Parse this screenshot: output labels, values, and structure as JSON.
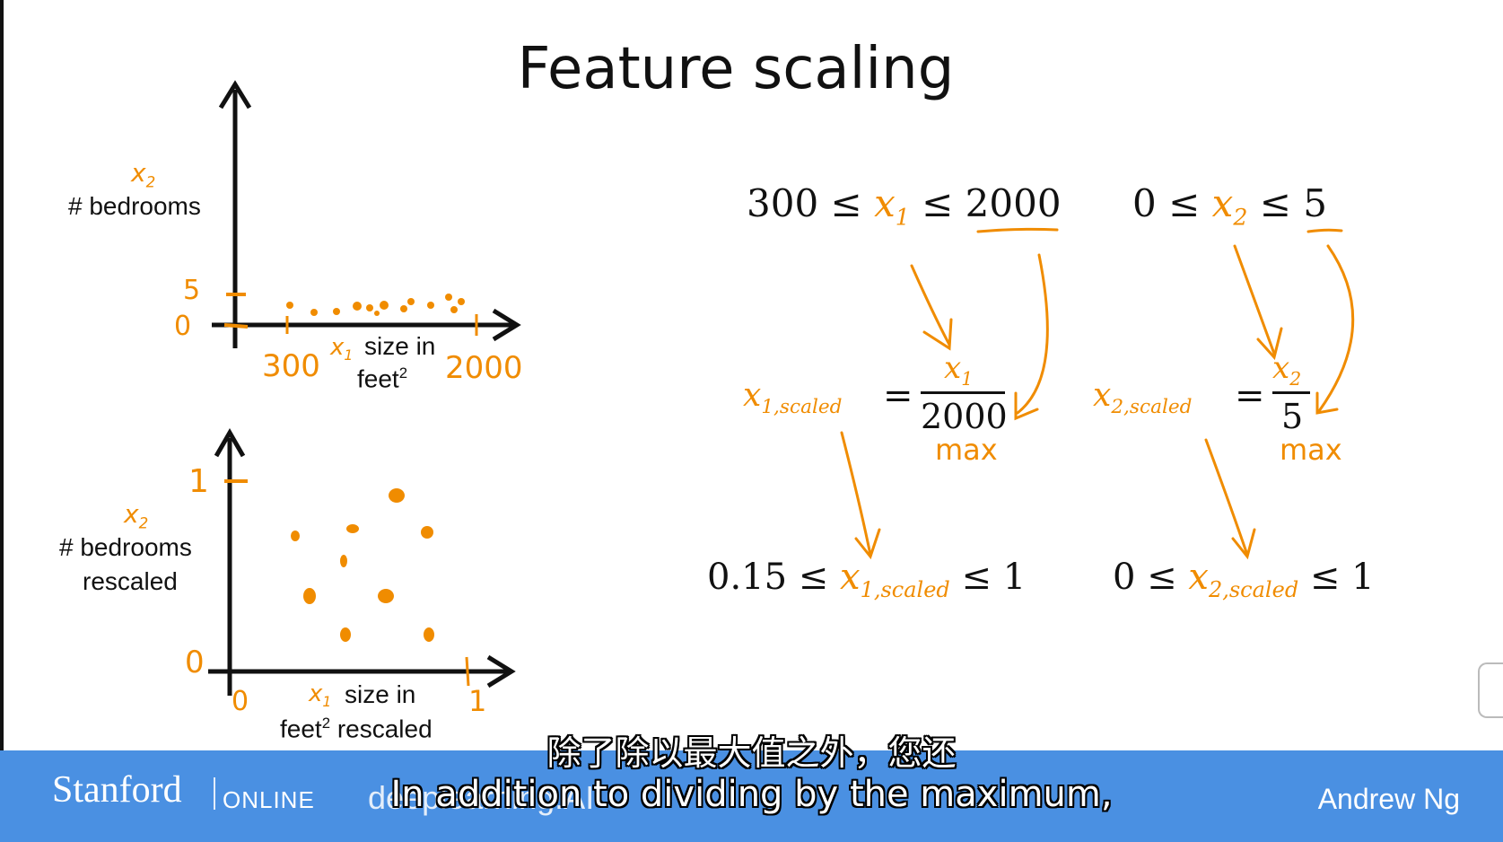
{
  "slide": {
    "title": "Feature scaling",
    "top_plot": {
      "y_var": "x",
      "y_var_sub": "2",
      "y_label": "# bedrooms",
      "x_var": "x",
      "x_var_sub": "1",
      "x_label_line1": "size in",
      "x_label_line2_base": "feet",
      "x_label_line2_sup": "2",
      "y_tick_top": "5",
      "y_tick_bottom": "0",
      "x_tick_left": "300",
      "x_tick_right": "2000"
    },
    "bottom_plot": {
      "y_var": "x",
      "y_var_sub": "2",
      "y_label_line1": "# bedrooms",
      "y_label_line2": "rescaled",
      "x_var": "x",
      "x_var_sub": "1",
      "x_label_line1": "size in",
      "x_label_line2_base": "feet",
      "x_label_line2_sup": "2",
      "x_label_line2_rest": " rescaled",
      "y_tick_top": "1",
      "y_tick_bottom": "0",
      "x_tick_left": "0",
      "x_tick_right": "1"
    },
    "equations": {
      "x1_range": {
        "low": "300 ≤ ",
        "var": "x",
        "sub": "1",
        "high": " ≤ 2000"
      },
      "x2_range": {
        "low": "0 ≤ ",
        "var": "x",
        "sub": "2",
        "high": " ≤ 5"
      },
      "x1_scaled_lhs": {
        "var": "x",
        "sub": "1,scaled"
      },
      "x1_eq": "=",
      "x1_num": {
        "var": "x",
        "sub": "1"
      },
      "x1_den": "2000",
      "x1_max": "max",
      "x2_scaled_lhs": {
        "var": "x",
        "sub": "2,scaled"
      },
      "x2_eq": "=",
      "x2_num": {
        "var": "x",
        "sub": "2"
      },
      "x2_den": "5",
      "x2_max": "max",
      "x1_scaled_range": {
        "low": "0.15 ≤ ",
        "var": "x",
        "sub": "1,scaled",
        "high": " ≤ 1"
      },
      "x2_scaled_range": {
        "low": "0 ≤ ",
        "var": "x",
        "sub": "2,scaled",
        "high": " ≤ 1"
      }
    }
  },
  "footer": {
    "stanford": "Stanford",
    "online": "ONLINE",
    "deeplearning_partial": "deeplearning.AI",
    "instructor": "Andrew Ng"
  },
  "subtitles": {
    "zh": "除了除以最大值之外，您还",
    "en": "In addition to dividing by the maximum,"
  },
  "colors": {
    "accent_orange": "#f08c00",
    "footer_blue": "#4a90e2",
    "text": "#111111"
  }
}
